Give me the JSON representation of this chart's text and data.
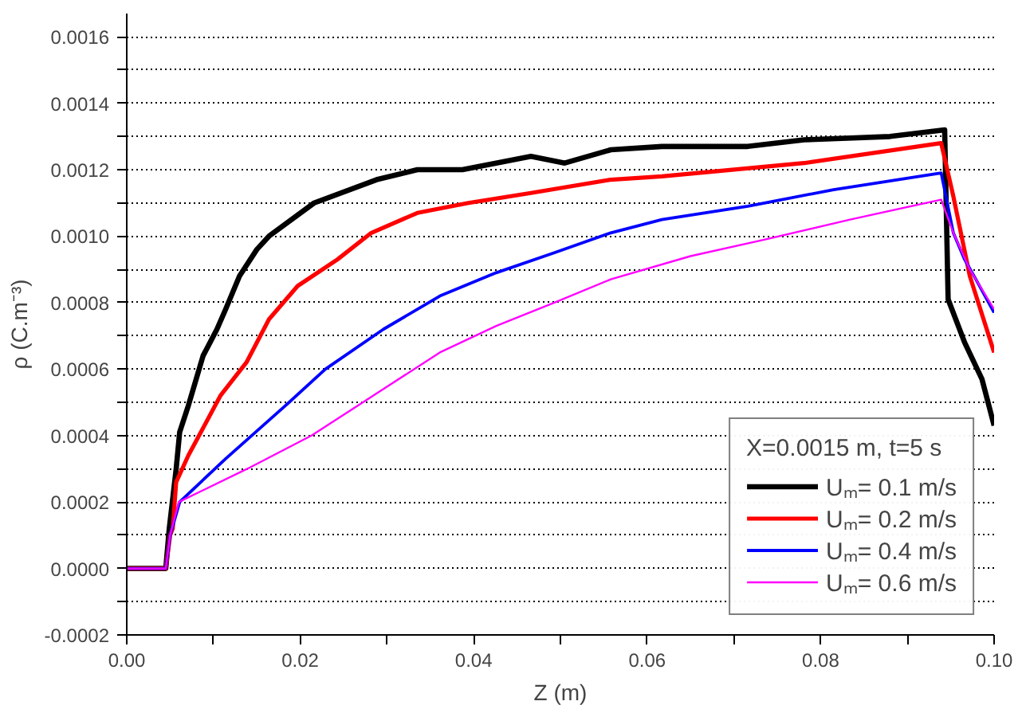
{
  "chart_data": {
    "type": "line",
    "xlabel": "Z (m)",
    "ylabel": "ρ (C.m⁻³)",
    "legend_title": "X=0.0015 m, t=5 s",
    "xlim": [
      0,
      0.1
    ],
    "ylim": [
      -0.0002,
      0.00167
    ],
    "xticks": [
      {
        "value": 0,
        "label": "0.00"
      },
      {
        "value": 0.01,
        "label": null
      },
      {
        "value": 0.02,
        "label": "0.02"
      },
      {
        "value": 0.03,
        "label": null
      },
      {
        "value": 0.04,
        "label": "0.04"
      },
      {
        "value": 0.05,
        "label": null
      },
      {
        "value": 0.06,
        "label": "0.06"
      },
      {
        "value": 0.07,
        "label": null
      },
      {
        "value": 0.08,
        "label": "0.08"
      },
      {
        "value": 0.09,
        "label": null
      },
      {
        "value": 0.1,
        "label": "0.10"
      }
    ],
    "yticks": [
      {
        "value": -0.0002,
        "label": "-0.0002"
      },
      {
        "value": -0.0001,
        "label": null
      },
      {
        "value": 0,
        "label": "0.0000"
      },
      {
        "value": 0.0001,
        "label": null
      },
      0.0002,
      {
        "value": 0.0003,
        "label": null
      },
      0.0004,
      {
        "value": 0.0005,
        "label": null
      },
      0.0006,
      {
        "value": 0.0007,
        "label": null
      },
      0.0008,
      {
        "value": 0.0009,
        "label": null
      },
      {
        "value": 0.001,
        "label": "0.0010"
      },
      {
        "value": 0.0011,
        "label": null
      },
      0.0012,
      {
        "value": 0.0013,
        "label": null
      },
      0.0014,
      {
        "value": 0.0015,
        "label": null
      },
      0.0016
    ],
    "grid": "y",
    "legend": "bottom right",
    "line_style": "solid",
    "series": [
      {
        "name": "Uₘ= 0.1 m/s",
        "color": "#000000",
        "x": [
          0,
          0.0045,
          0.0049,
          0.0057,
          0.0061,
          0.0071,
          0.0088,
          0.0104,
          0.0114,
          0.013,
          0.015,
          0.0164,
          0.0216,
          0.0288,
          0.0335,
          0.0387,
          0.0466,
          0.0505,
          0.0558,
          0.0617,
          0.0716,
          0.0781,
          0.088,
          0.0943,
          0.0947,
          0.0966,
          0.0986,
          0.1
        ],
        "values": [
          0,
          0,
          0.00012,
          0.0003,
          0.00041,
          0.00049,
          0.00064,
          0.00072,
          0.00078,
          0.00088,
          0.00096,
          0.001,
          0.0011,
          0.00117,
          0.0012,
          0.0012,
          0.00124,
          0.00122,
          0.00126,
          0.00127,
          0.00127,
          0.00129,
          0.0013,
          0.00132,
          0.00081,
          0.00068,
          0.00057,
          0.00043
        ]
      },
      {
        "name": "Uₘ= 0.2 m/s",
        "color": "#ff0000",
        "x": [
          0,
          0.0045,
          0.005,
          0.0053,
          0.0057,
          0.0071,
          0.0108,
          0.0138,
          0.0164,
          0.0197,
          0.0243,
          0.0282,
          0.0335,
          0.0394,
          0.0466,
          0.0558,
          0.0617,
          0.0781,
          0.0939,
          0.0953,
          0.0972,
          0.1
        ],
        "values": [
          0,
          0,
          0.0001,
          0.00012,
          0.00026,
          0.00034,
          0.00052,
          0.00062,
          0.00075,
          0.00085,
          0.00093,
          0.00101,
          0.00107,
          0.0011,
          0.00113,
          0.00117,
          0.00118,
          0.00122,
          0.00128,
          0.00112,
          0.00088,
          0.00065
        ]
      },
      {
        "name": "Uₘ= 0.4 m/s",
        "color": "#0000ff",
        "x": [
          0,
          0.0045,
          0.005,
          0.0061,
          0.0114,
          0.0183,
          0.0229,
          0.0296,
          0.0361,
          0.0426,
          0.0493,
          0.0558,
          0.0617,
          0.0716,
          0.0815,
          0.0939,
          0.0953,
          0.0966,
          0.0979,
          0.1
        ],
        "values": [
          0,
          0,
          0.0001,
          0.0002,
          0.00033,
          0.00049,
          0.0006,
          0.00072,
          0.00082,
          0.00089,
          0.00095,
          0.00101,
          0.00105,
          0.00109,
          0.00114,
          0.00119,
          0.00101,
          0.00093,
          0.00087,
          0.00077
        ]
      },
      {
        "name": "Uₘ= 0.6 m/s",
        "color": "#ff00ff",
        "x": [
          0,
          0.0045,
          0.005,
          0.006,
          0.0139,
          0.0213,
          0.0296,
          0.0361,
          0.0426,
          0.0493,
          0.0558,
          0.065,
          0.0736,
          0.0834,
          0.0939,
          0.0953,
          0.0972,
          0.1
        ],
        "values": [
          0,
          0,
          0.0001,
          0.0002,
          0.0003,
          0.0004,
          0.00054,
          0.00065,
          0.00073,
          0.0008,
          0.00087,
          0.00094,
          0.00099,
          0.00105,
          0.00111,
          0.00101,
          0.0009,
          0.00078
        ]
      }
    ]
  }
}
